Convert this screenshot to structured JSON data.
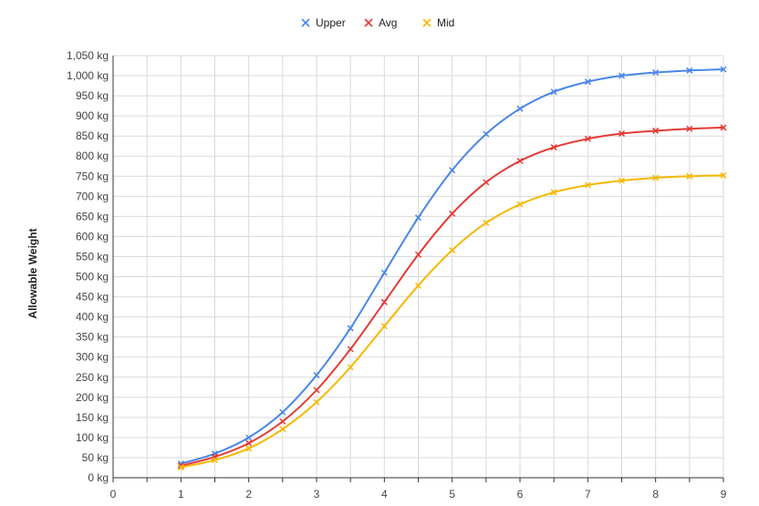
{
  "chart_data": {
    "type": "line",
    "title": "",
    "xlabel": "",
    "ylabel": "Allowable Weight",
    "y_unit": "kg",
    "xlim": [
      0,
      9
    ],
    "ylim": [
      0,
      1050
    ],
    "x_ticks": [
      0,
      1,
      2,
      3,
      4,
      5,
      6,
      7,
      8,
      9
    ],
    "y_tick_step": 50,
    "grid": true,
    "legend_position": "top-center",
    "marker": "x",
    "x": [
      1,
      1.5,
      2,
      2.5,
      3,
      3.5,
      4,
      4.5,
      5,
      5.5,
      6,
      6.5,
      7,
      7.5,
      8,
      8.5,
      9
    ],
    "series": [
      {
        "name": "Upper",
        "color": "#4a86e8",
        "values": [
          35,
          60,
          100,
          163,
          255,
          372,
          510,
          647,
          765,
          855,
          918,
          960,
          985,
          1000,
          1008,
          1013,
          1016
        ]
      },
      {
        "name": "Avg",
        "color": "#e53935",
        "values": [
          30,
          52,
          86,
          140,
          218,
          320,
          437,
          555,
          657,
          735,
          788,
          822,
          843,
          856,
          863,
          868,
          871
        ]
      },
      {
        "name": "Mid",
        "color": "#f5b800",
        "values": [
          26,
          44,
          73,
          121,
          188,
          275,
          377,
          478,
          566,
          634,
          680,
          710,
          728,
          739,
          746,
          750,
          752
        ]
      }
    ]
  }
}
